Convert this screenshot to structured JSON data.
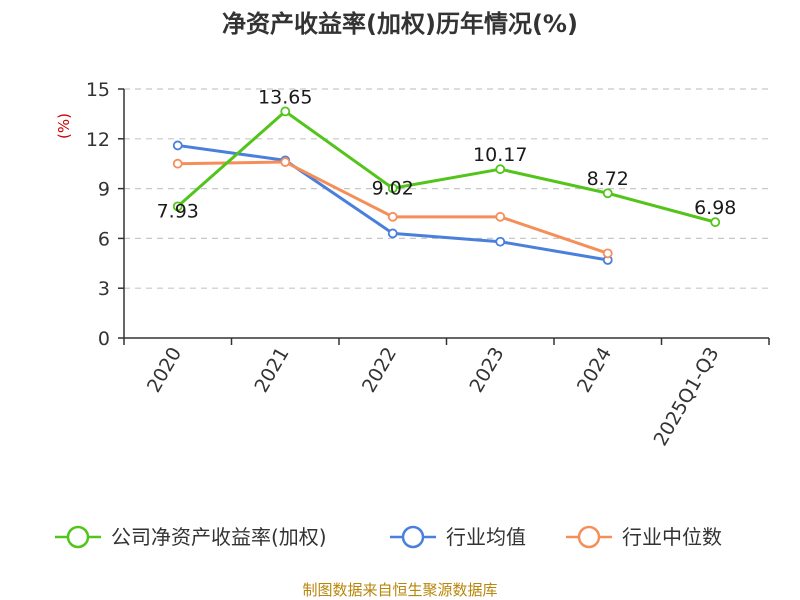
{
  "chart_data": {
    "type": "line",
    "title": "净资产收益率(加权)历年情况(%)",
    "ylabel": "(%)",
    "xlabel": "",
    "categories": [
      "2020",
      "2021",
      "2022",
      "2023",
      "2024",
      "2025Q1-Q3"
    ],
    "ylim": [
      0,
      15
    ],
    "yticks": [
      0,
      3,
      6,
      9,
      12,
      15
    ],
    "grid": true,
    "legend_position": "bottom",
    "series": [
      {
        "name": "公司净资产收益率(加权)",
        "color": "#52c41a",
        "values": [
          7.93,
          13.65,
          9.02,
          10.17,
          8.72,
          6.98
        ],
        "labels": [
          "7.93",
          "13.65",
          "9.02",
          "10.17",
          "8.72",
          "6.98"
        ]
      },
      {
        "name": "行业均值",
        "color": "#4a7fdc",
        "values": [
          11.6,
          10.7,
          6.3,
          5.8,
          4.7,
          null
        ]
      },
      {
        "name": "行业中位数",
        "color": "#f58f5a",
        "values": [
          10.5,
          10.6,
          7.3,
          7.3,
          5.1,
          null
        ]
      }
    ]
  },
  "source": "制图数据来自恒生聚源数据库"
}
